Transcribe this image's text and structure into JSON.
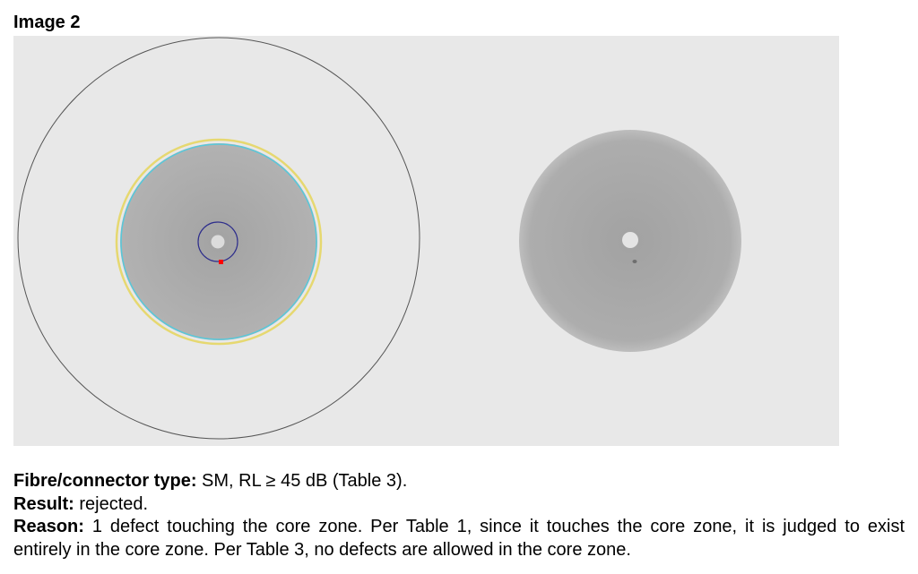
{
  "caption": "Image 2",
  "figure": {
    "background_color": "#e8e8e8",
    "left_view": {
      "outer_ring_color": "#555555",
      "fibre_color": "#a9a9a9",
      "cladding_ring_color": "#e6d870",
      "inner_ring_color": "#57c8da",
      "core_zone_ring_color": "#2e2e8c",
      "core_color": "#dcdcdc",
      "defect_marker_color": "#ff0000"
    },
    "right_view": {
      "fibre_color": "#a8a8a8",
      "core_color": "#e4e4e4",
      "defect_color": "#6e6e6e"
    }
  },
  "notes": {
    "fibre": {
      "label": "Fibre/connector type:",
      "value": " SM,  RL ≥ 45 dB (Table 3)."
    },
    "result": {
      "label": "Result:",
      "value": " rejected."
    },
    "reason": {
      "label": "Reason:",
      "value": " 1 defect touching the core zone. Per Table 1, since it touches the core zone, it is judged to exist entirely in the core zone. Per Table 3, no defects are allowed in the core zone."
    }
  }
}
